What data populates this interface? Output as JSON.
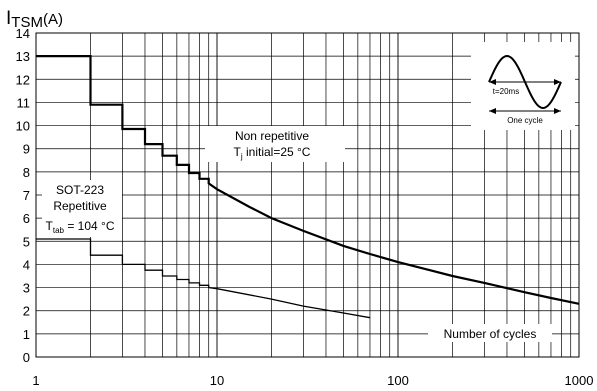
{
  "chart_data": {
    "type": "line",
    "title": "",
    "ylabel": {
      "main": "I",
      "sub": "TSM",
      "unit": "(A)"
    },
    "xlabel": "Number of cycles",
    "x_scale": "log",
    "xlim": [
      1,
      1000
    ],
    "ylim": [
      0,
      14
    ],
    "grid": true,
    "xtick_labels": [
      "1",
      "10",
      "100",
      "1000"
    ],
    "ytick_labels": [
      "0",
      "1",
      "2",
      "3",
      "4",
      "5",
      "6",
      "7",
      "8",
      "9",
      "10",
      "11",
      "12",
      "13",
      "14"
    ],
    "series": [
      {
        "name": "Non repetitive",
        "condition": {
          "prefix": "T",
          "sub": "j",
          "suffix": " initial=25 °C"
        },
        "steps": [
          [
            1,
            13.0
          ],
          [
            2,
            10.9
          ],
          [
            3,
            9.85
          ],
          [
            4,
            9.2
          ],
          [
            5,
            8.7
          ],
          [
            6,
            8.3
          ],
          [
            7,
            7.95
          ],
          [
            8,
            7.7
          ],
          [
            9,
            7.5
          ]
        ],
        "curve": [
          [
            9,
            7.5
          ],
          [
            10,
            7.25
          ],
          [
            15,
            6.5
          ],
          [
            20,
            6.0
          ],
          [
            30,
            5.45
          ],
          [
            50,
            4.8
          ],
          [
            70,
            4.45
          ],
          [
            100,
            4.1
          ],
          [
            150,
            3.75
          ],
          [
            200,
            3.5
          ],
          [
            300,
            3.2
          ],
          [
            500,
            2.8
          ],
          [
            700,
            2.55
          ],
          [
            1000,
            2.3
          ]
        ]
      },
      {
        "name": "SOT-223",
        "label_line2": "Repetitive",
        "condition": {
          "prefix": "T",
          "sub": "tab",
          "suffix": " = 104 °C"
        },
        "steps": [
          [
            1,
            5.1
          ],
          [
            2,
            4.4
          ],
          [
            3,
            4.0
          ],
          [
            4,
            3.75
          ],
          [
            5,
            3.5
          ],
          [
            6,
            3.35
          ],
          [
            7,
            3.2
          ],
          [
            8,
            3.1
          ],
          [
            9,
            3.0
          ]
        ],
        "curve": [
          [
            9,
            3.0
          ],
          [
            10,
            2.95
          ],
          [
            20,
            2.5
          ],
          [
            30,
            2.2
          ],
          [
            50,
            1.9
          ],
          [
            70,
            1.7
          ]
        ]
      }
    ],
    "inset": {
      "period_label": "t=20ms",
      "cycle_label": "One cycle"
    }
  }
}
